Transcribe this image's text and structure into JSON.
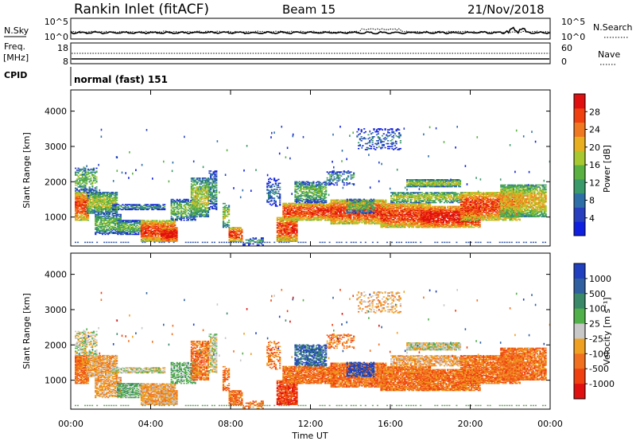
{
  "header": {
    "station": "Rankin Inlet (fitACF)",
    "beam": "Beam 15",
    "date": "21/Nov/2018"
  },
  "noise_panel": {
    "left_label": "N.Sky",
    "right_label": "N.Search",
    "left_ticks": [
      "10^5",
      "10^0"
    ],
    "right_ticks": [
      "10^5",
      "10^0"
    ]
  },
  "freq_panel": {
    "left_label_1": "Freq.",
    "left_label_2": "[MHz]",
    "right_label": "Nave",
    "left_ticks": [
      "18",
      "8"
    ],
    "right_ticks": [
      "60",
      "0"
    ]
  },
  "cpid": {
    "label": "CPID",
    "value": "normal (fast) 151"
  },
  "colors": {
    "radar_scatter": "#000000"
  },
  "chart_data": [
    {
      "type": "heatmap",
      "name": "power",
      "ylabel": "Slant Range [km]",
      "xlabel": "",
      "ylim": [
        180,
        4600
      ],
      "yticks": [
        "1000",
        "2000",
        "3000",
        "4000"
      ],
      "ytick_values": [
        1000,
        2000,
        3000,
        4000
      ],
      "xlim": [
        0,
        24
      ],
      "colorbar": {
        "label": "Power [dB]",
        "ticks": [
          "4",
          "8",
          "12",
          "16",
          "20",
          "24",
          "28"
        ],
        "tick_values": [
          4,
          8,
          12,
          16,
          20,
          24,
          28
        ],
        "range": [
          0,
          32
        ],
        "colors": [
          "#1020e0",
          "#2840c0",
          "#2f6fa8",
          "#3a9a6a",
          "#5ab040",
          "#a8c830",
          "#e8b020",
          "#f07820",
          "#f04010",
          "#e01010"
        ]
      }
    },
    {
      "type": "heatmap",
      "name": "velocity",
      "ylabel": "Slant Range [km]",
      "xlabel": "Time UT",
      "ylim": [
        180,
        4600
      ],
      "yticks": [
        "1000",
        "2000",
        "3000",
        "4000"
      ],
      "ytick_values": [
        1000,
        2000,
        3000,
        4000
      ],
      "xlim": [
        0,
        24
      ],
      "xticks": [
        "00:00",
        "04:00",
        "08:00",
        "12:00",
        "16:00",
        "20:00",
        "00:00"
      ],
      "xtick_values": [
        0,
        4,
        8,
        12,
        16,
        20,
        24
      ],
      "colorbar": {
        "label": "Velocity [m s⁻¹]",
        "ticks": [
          "1000",
          "500",
          "100",
          "25",
          "-25",
          "-100",
          "-500",
          "-1000"
        ],
        "colors": [
          "#2040c0",
          "#3060a0",
          "#3a8a6a",
          "#52b04a",
          "#c8c8c8",
          "#f0a020",
          "#f07020",
          "#f04010",
          "#e01010"
        ]
      }
    }
  ]
}
